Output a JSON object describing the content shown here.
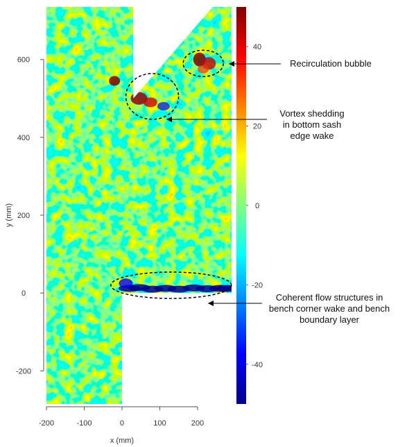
{
  "chart_data": {
    "type": "heatmap",
    "title": "",
    "xlabel": "x (mm)",
    "ylabel": "y (mm)",
    "xlim": [
      -200,
      290
    ],
    "ylim": [
      -285,
      735
    ],
    "xticks": [
      -200,
      -100,
      0,
      100,
      200
    ],
    "yticks": [
      -200,
      0,
      200,
      400,
      600
    ],
    "colorbar": {
      "ticks": [
        -40,
        -20,
        0,
        20,
        40
      ],
      "range": [
        -50,
        50
      ],
      "colormap": [
        "#00008f",
        "#0000ff",
        "#0080ff",
        "#00ffff",
        "#80ff80",
        "#ffff00",
        "#ff8000",
        "#ff0000",
        "#800000"
      ]
    },
    "masked_regions": [
      {
        "shape": "rectangle",
        "x": [
          0,
          290
        ],
        "y": [
          -285,
          0
        ]
      },
      {
        "shape": "polygon",
        "points": [
          [
            30,
            735
          ],
          [
            30,
            500
          ],
          [
            240,
            735
          ]
        ]
      }
    ],
    "annotations": [
      {
        "text": "Recirculation bubble",
        "ellipse_center": [
          215,
          590
        ],
        "lines": [
          "Recirculation bubble"
        ]
      },
      {
        "text": "Vortex shedding in bottom sash edge wake",
        "ellipse_center": [
          80,
          505
        ],
        "lines": [
          "Vortex shedding",
          "in bottom sash",
          "edge wake"
        ]
      },
      {
        "text": "Coherent flow structures in bench corner wake and bench boundary layer",
        "ellipse_center": [
          130,
          20
        ],
        "lines": [
          "Coherent flow structures in",
          "bench corner wake and bench",
          "boundary layer"
        ]
      }
    ],
    "grid": false,
    "legend": "colorbar-right"
  }
}
